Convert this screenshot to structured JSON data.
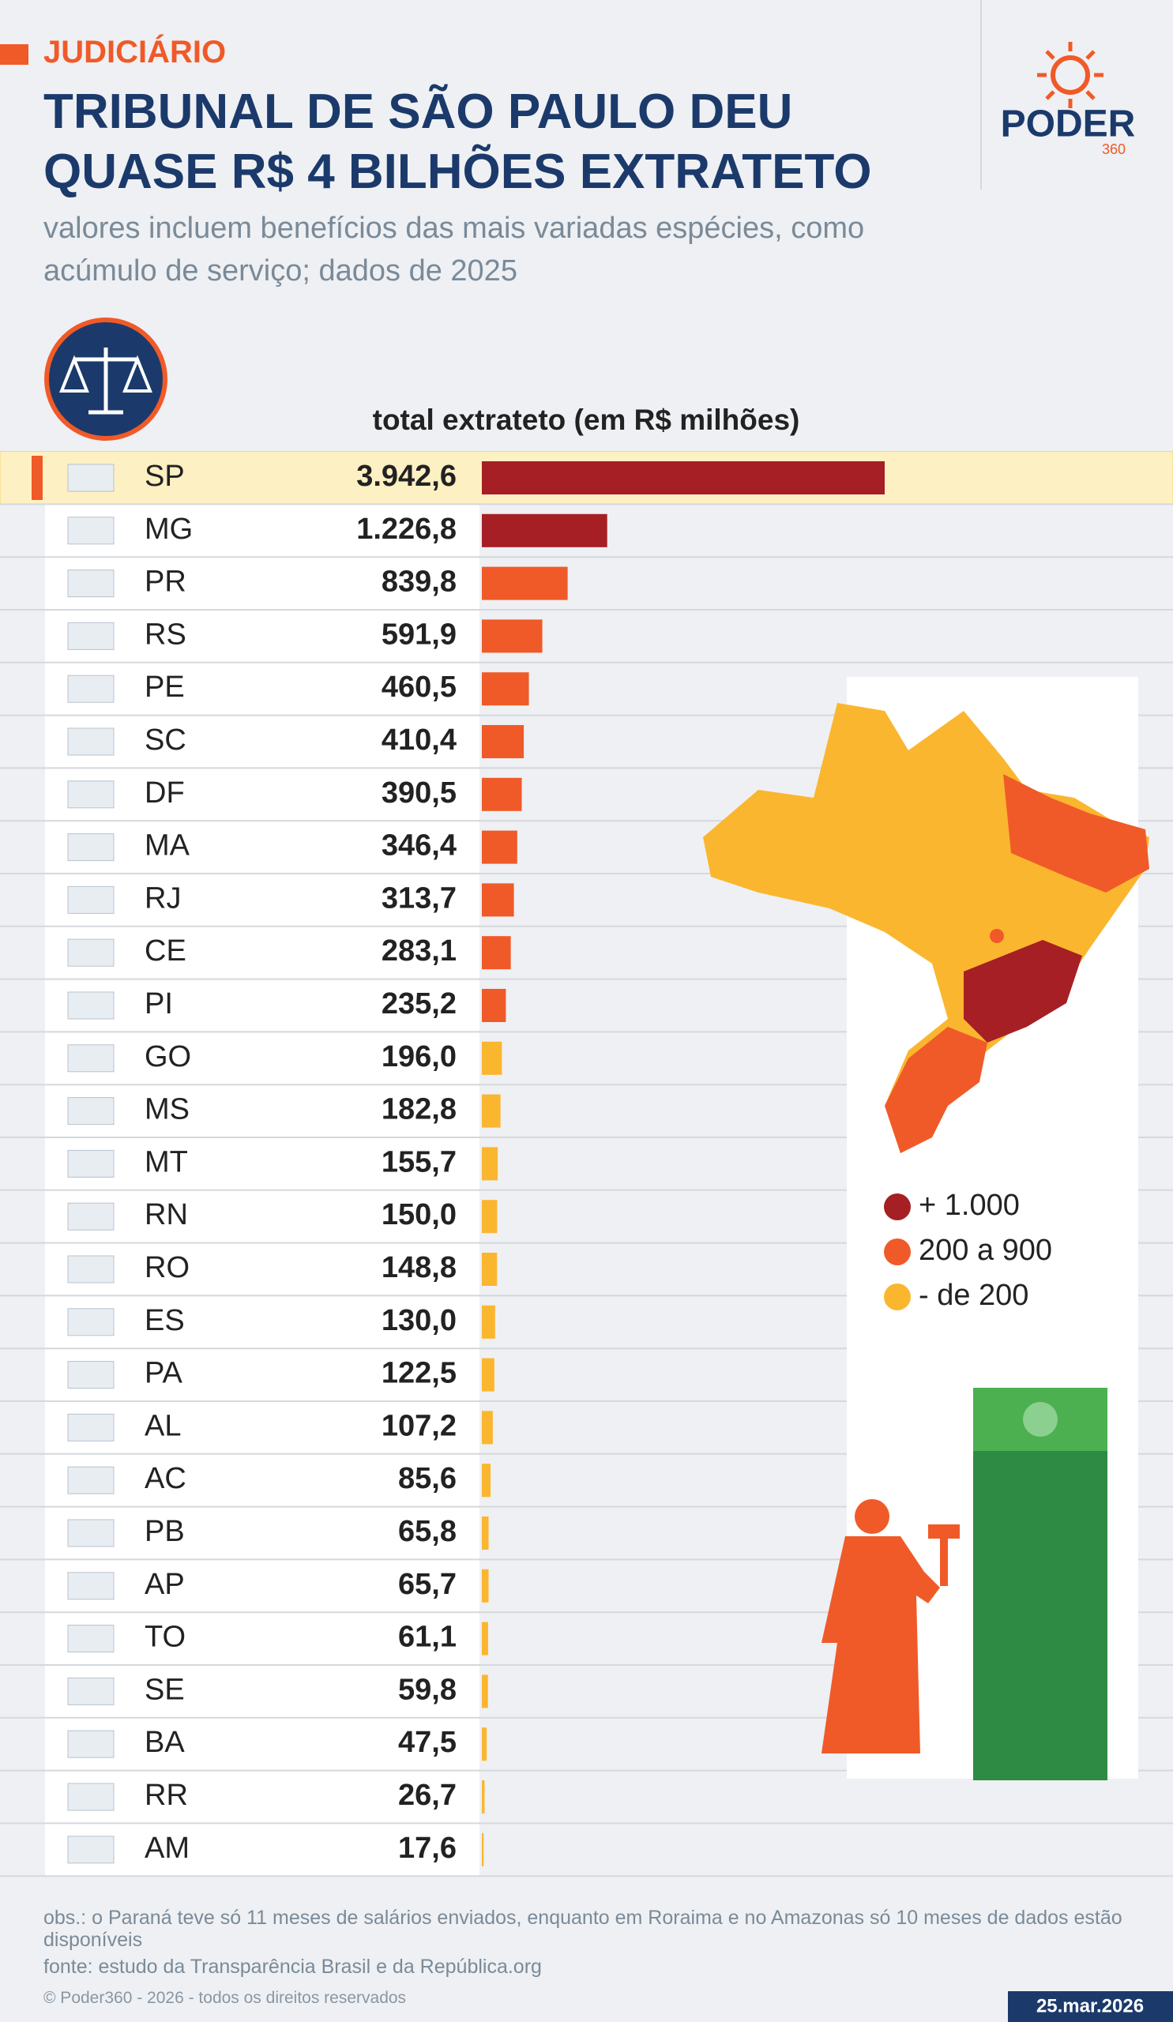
{
  "chart_data": {
    "type": "bar",
    "orientation": "horizontal",
    "kicker": "JUDICIÁRIO",
    "title": "TRIBUNAL DE SÃO PAULO DEU QUASE R$ 4 BILHÕES EXTRATETO",
    "subtitle": "valores incluem benefícios das mais variadas espécies, como acúmulo de serviço; dados de 2025",
    "value_axis_label": "total extrateto (em R$  milhões)",
    "categories": [
      "SP",
      "MG",
      "PR",
      "RS",
      "PE",
      "SC",
      "DF",
      "MA",
      "RJ",
      "CE",
      "PI",
      "GO",
      "MS",
      "MT",
      "RN",
      "RO",
      "ES",
      "PA",
      "AL",
      "AC",
      "PB",
      "AP",
      "TO",
      "SE",
      "BA",
      "RR",
      "AM"
    ],
    "values": [
      3942.6,
      1226.8,
      839.8,
      591.9,
      460.5,
      410.4,
      390.5,
      346.4,
      313.7,
      283.1,
      235.2,
      196.0,
      182.8,
      155.7,
      150.0,
      148.8,
      130.0,
      122.5,
      107.2,
      85.6,
      65.8,
      65.7,
      61.1,
      59.8,
      47.5,
      26.7,
      17.6
    ],
    "value_labels": [
      "3.942,6",
      "1.226,8",
      "839,8",
      "591,9",
      "460,5",
      "410,4",
      "390,5",
      "346,4",
      "313,7",
      "283,1",
      "235,2",
      "196,0",
      "182,8",
      "155,7",
      "150,0",
      "148,8",
      "130,0",
      "122,5",
      "107,2",
      "85,6",
      "65,8",
      "65,7",
      "61,1",
      "59,8",
      "47,5",
      "26,7",
      "17,6"
    ],
    "colors": [
      "#a61f24",
      "#a61f24",
      "#f05a28",
      "#f05a28",
      "#f05a28",
      "#f05a28",
      "#f05a28",
      "#f05a28",
      "#f05a28",
      "#f05a28",
      "#f05a28",
      "#fbb62f",
      "#fbb62f",
      "#fbb62f",
      "#fbb62f",
      "#fbb62f",
      "#fbb62f",
      "#fbb62f",
      "#fbb62f",
      "#fbb62f",
      "#fbb62f",
      "#fbb62f",
      "#fbb62f",
      "#fbb62f",
      "#fbb62f",
      "#fbb62f",
      "#fbb62f"
    ],
    "highlight": "SP",
    "legend": [
      {
        "label": "+ 1.000",
        "color": "#a61f24"
      },
      {
        "label": "200 a 900",
        "color": "#f05a28"
      },
      {
        "label": "- de 200",
        "color": "#fbb62f"
      }
    ],
    "note": "obs.: o Paraná teve só 11 meses de salários enviados, enquanto em Roraima e no Amazonas só 10 meses de dados estão disponíveis",
    "source": "fonte: estudo da Transparência Brasil e da República.org",
    "copyright": "© Poder360 - 2026 - todos os direitos reservados",
    "date": "25.mar.2026",
    "brand": "PODER",
    "brand_sub": "360"
  }
}
